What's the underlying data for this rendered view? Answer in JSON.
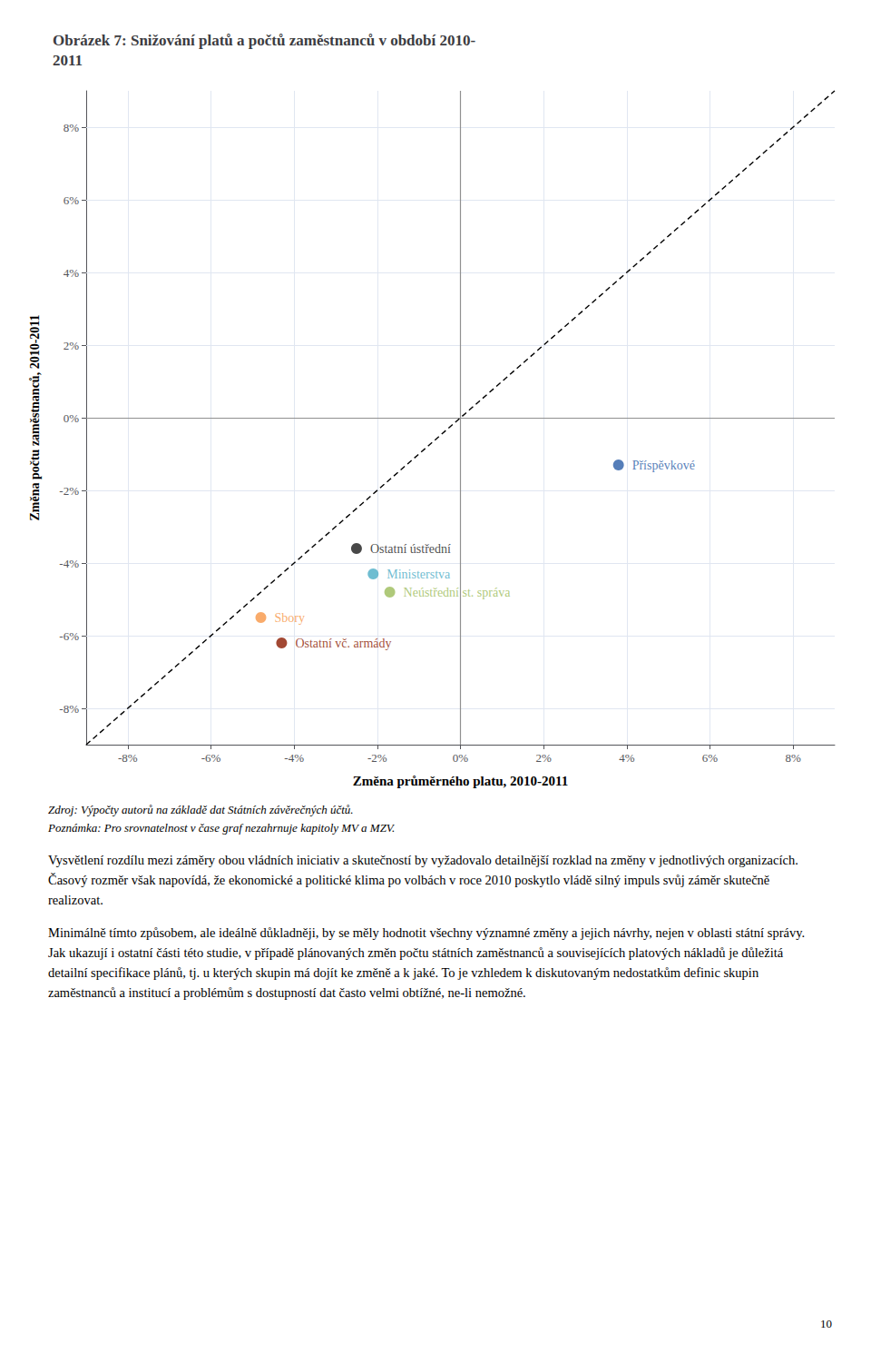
{
  "chart_data": {
    "type": "scatter",
    "title": "Obrázek 7: Snižování platů a počtů zaměstnanců v období 2010-\n2011",
    "xlabel": "Změna průměrného platu, 2010-2011",
    "ylabel": "Změna počtu zaměstnanců, 2010-2011",
    "x": [
      0.038,
      -0.025,
      -0.021,
      -0.017,
      -0.048,
      -0.043
    ],
    "values": [
      -0.013,
      -0.036,
      -0.043,
      -0.048,
      -0.055,
      -0.062
    ],
    "labels": [
      "Příspěvkové",
      "Ostatní ústřední",
      "Ministerstva",
      "Neústřední st. správa",
      "Sbory",
      "Ostatní vč. armády"
    ],
    "colors": [
      "#2B5EA7",
      "#1a1a1a",
      "#4BACC6",
      "#9BBB59",
      "#F79646",
      "#8B1A00"
    ],
    "xlim": [
      -0.09,
      0.09
    ],
    "ylim": [
      -0.09,
      0.09
    ],
    "xticks": [
      {
        "value": -0.08,
        "label": "-8%"
      },
      {
        "value": -0.06,
        "label": "-6%"
      },
      {
        "value": -0.04,
        "label": "-4%"
      },
      {
        "value": -0.02,
        "label": "-2%"
      },
      {
        "value": 0.0,
        "label": "0%"
      },
      {
        "value": 0.02,
        "label": "2%"
      },
      {
        "value": 0.04,
        "label": "4%"
      },
      {
        "value": 0.06,
        "label": "6%"
      },
      {
        "value": 0.08,
        "label": "8%"
      }
    ],
    "yticks": [
      {
        "value": -0.08,
        "label": "-8%"
      },
      {
        "value": -0.06,
        "label": "-6%"
      },
      {
        "value": -0.04,
        "label": "-4%"
      },
      {
        "value": -0.02,
        "label": "-2%"
      },
      {
        "value": 0.0,
        "label": "0%"
      },
      {
        "value": 0.02,
        "label": "2%"
      },
      {
        "value": 0.04,
        "label": "4%"
      },
      {
        "value": 0.06,
        "label": "6%"
      },
      {
        "value": 0.08,
        "label": "8%"
      }
    ],
    "grid": true,
    "notes": [
      "Zdroj: Výpočty autorů na základě dat Státních závěrečných účtů.",
      "Poznámka: Pro srovnatelnost v čase graf nezahrnuje kapitoly MV a MZV."
    ],
    "paragraphs": [
      "Vysvětlení rozdílu mezi záměry obou vládních iniciativ a skutečností by vyžadovalo detailnější rozklad na změny v jednotlivých organizacích. Časový rozměr však napovídá, že ekonomické a politické klima po volbách v roce 2010 poskytlo vládě silný impuls svůj záměr skutečně realizovat.",
      "Minimálně tímto způsobem, ale ideálně důkladněji, by se měly hodnotit všechny významné změny a jejich návrhy, nejen v oblasti státní správy. Jak ukazují i ostatní části této studie, v případě plánovaných změn počtu státních zaměstnanců a souvisejících platových nákladů je důležitá detailní specifikace plánů, tj. u kterých skupin má dojít ke změně a k jaké. To je vzhledem k diskutovaným nedostatkům definic skupin zaměstnanců a institucí a problémům s dostupností dat často velmi obtížné, ne-li nemožné."
    ],
    "page_number": "10"
  }
}
